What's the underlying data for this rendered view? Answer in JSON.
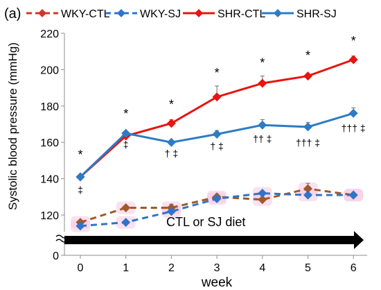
{
  "panel_label": "(a)",
  "diet_label": "CTL or SJ diet",
  "colors": {
    "WKY-CTL": "#d1342a",
    "WKY-SJ": "#2f74c9",
    "SHR-CTL": "#e8140f",
    "SHR-SJ": "#2e7bc4",
    "brown": "#a2572a",
    "arrow": "#000000"
  },
  "chart_data": {
    "type": "line",
    "title": "",
    "xlabel": "week",
    "ylabel": "Systolic blood pressure (mmHg)",
    "x": [
      0,
      1,
      2,
      3,
      4,
      5,
      6
    ],
    "x_tick_labels": [
      "0",
      "1",
      "2",
      "3",
      "4",
      "5",
      "6"
    ],
    "ylim": [
      110,
      220
    ],
    "y_axis_break": true,
    "y_tick_labels": [
      "0",
      "120",
      "140",
      "160",
      "180",
      "200",
      "220"
    ],
    "legend": [
      "WKY-CTL",
      "WKY-SJ",
      "SHR-CTL",
      "SHR-SJ"
    ],
    "legend_position": "top",
    "series": [
      {
        "name": "WKY-CTL",
        "line_style": "dashed",
        "values": [
          116,
          124,
          124,
          130,
          128.5,
          134.5,
          131
        ],
        "errors": [
          0,
          0,
          2,
          0,
          0,
          3,
          0
        ]
      },
      {
        "name": "WKY-SJ",
        "line_style": "dashed",
        "values": [
          114,
          116,
          122,
          129,
          132,
          131,
          131
        ],
        "errors": [
          0,
          0,
          0,
          0,
          0,
          0,
          0
        ]
      },
      {
        "name": "SHR-CTL",
        "line_style": "solid",
        "values": [
          141,
          163.5,
          170.5,
          185,
          192.5,
          196.5,
          205.5
        ],
        "errors": [
          0,
          0,
          2,
          6,
          4,
          0,
          2
        ]
      },
      {
        "name": "SHR-SJ",
        "line_style": "solid",
        "values": [
          141,
          165,
          160,
          164.5,
          169.5,
          168.5,
          176
        ],
        "errors": [
          0,
          0,
          0,
          2,
          3,
          2.5,
          3
        ]
      }
    ],
    "annotations": [
      {
        "week": 0,
        "value": 151,
        "text": "*"
      },
      {
        "week": 1,
        "value": 173.5,
        "text": "*"
      },
      {
        "week": 2,
        "value": 178.5,
        "text": "*"
      },
      {
        "week": 3,
        "value": 196,
        "text": "*"
      },
      {
        "week": 4,
        "value": 201.5,
        "text": "*"
      },
      {
        "week": 5,
        "value": 205.5,
        "text": "*"
      },
      {
        "week": 6,
        "value": 213.5,
        "text": "*"
      },
      {
        "week": 0,
        "value": 132,
        "text": "‡"
      },
      {
        "week": 1,
        "value": 157,
        "text": "‡"
      },
      {
        "week": 2,
        "value": 152,
        "text": "† ‡"
      },
      {
        "week": 3,
        "value": 156,
        "text": "† ‡"
      },
      {
        "week": 4,
        "value": 160,
        "text": "†† ‡"
      },
      {
        "week": 5,
        "value": 158,
        "text": "††† ‡"
      },
      {
        "week": 6,
        "value": 166,
        "text": "††† ‡"
      }
    ]
  }
}
